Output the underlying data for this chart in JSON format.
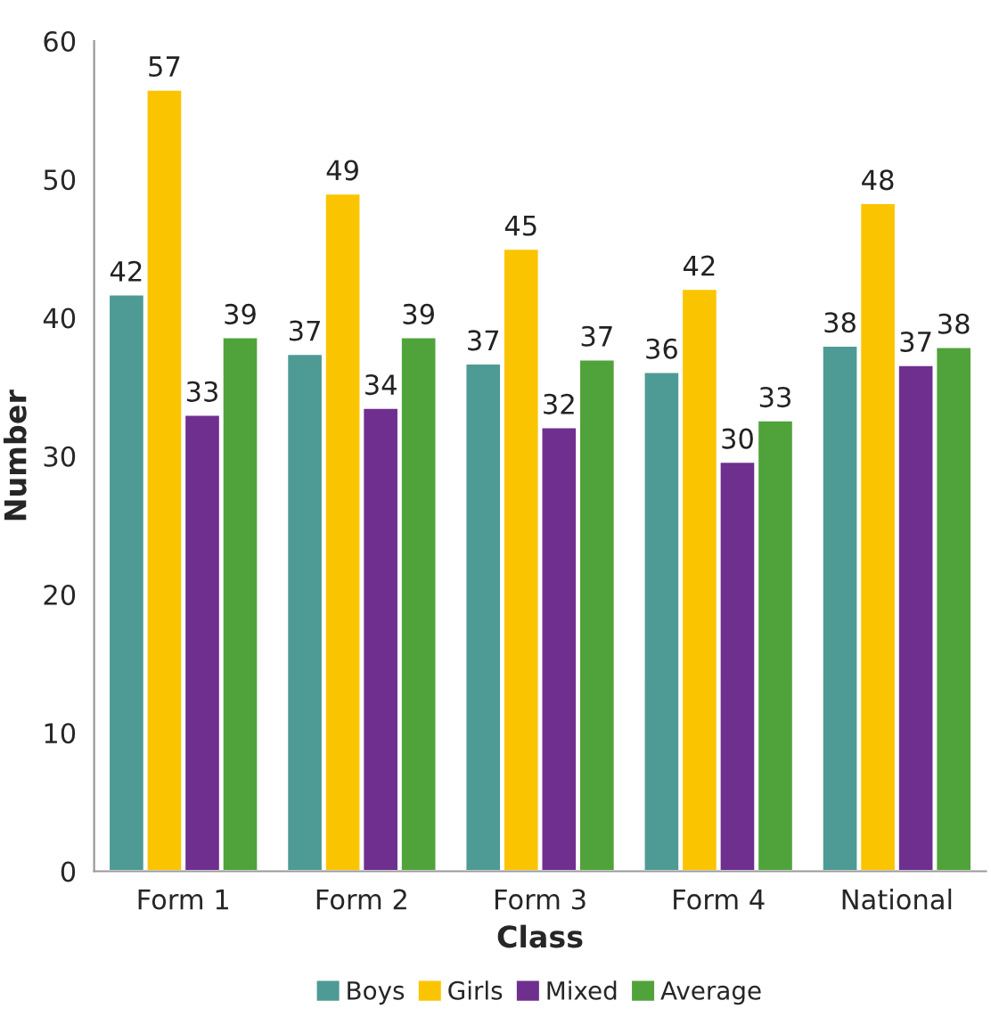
{
  "chart_data": {
    "type": "bar",
    "xlabel": "Class",
    "ylabel": "Number",
    "categories": [
      "Form 1",
      "Form 2",
      "Form 3",
      "Form 4",
      "National"
    ],
    "series": [
      {
        "name": "Boys",
        "color": "#4e9a94",
        "values": [
          41.7,
          37.4,
          36.7,
          36.1,
          38.0
        ],
        "value_labels": [
          "42",
          "37",
          "37",
          "36",
          "38"
        ]
      },
      {
        "name": "Girls",
        "color": "#fbc400",
        "values": [
          56.5,
          49.0,
          45.0,
          42.1,
          48.3
        ],
        "value_labels": [
          "57",
          "49",
          "45",
          "42",
          "48"
        ]
      },
      {
        "name": "Mixed",
        "color": "#6f2f8f",
        "values": [
          33.0,
          33.5,
          32.1,
          29.6,
          36.6
        ],
        "value_labels": [
          "33",
          "34",
          "32",
          "30",
          "37"
        ]
      },
      {
        "name": "Average",
        "color": "#4fa33a",
        "values": [
          38.6,
          38.6,
          37.0,
          32.6,
          37.9
        ],
        "value_labels": [
          "39",
          "39",
          "37",
          "33",
          "38"
        ]
      }
    ],
    "ylim": [
      0,
      60
    ],
    "yticks": [
      0,
      10,
      20,
      30,
      40,
      50,
      60
    ],
    "grid": false,
    "legend": "bottom"
  }
}
